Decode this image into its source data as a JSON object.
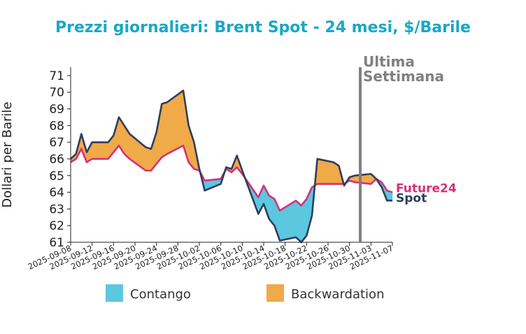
{
  "chart_data": {
    "type": "line",
    "title": "Prezzi giornalieri: Brent Spot - 24 mesi, $/Barile",
    "ylabel": "Dollari per Barile",
    "xlabel": "",
    "ylim": [
      61,
      71.5
    ],
    "yticks": [
      61,
      62,
      63,
      64,
      65,
      66,
      67,
      68,
      69,
      70,
      71
    ],
    "xlim": [
      "2025-09-08",
      "2025-11-07"
    ],
    "xticks": [
      "2025-09-08",
      "2025-09-12",
      "2025-09-16",
      "2025-09-20",
      "2025-09-24",
      "2025-09-28",
      "2025-10-02",
      "2025-10-06",
      "2025-10-10",
      "2025-10-14",
      "2025-10-18",
      "2025-10-22",
      "2025-10-26",
      "2025-10-30",
      "2025-11-03",
      "2025-11-07"
    ],
    "x": [
      "2025-09-08",
      "2025-09-09",
      "2025-09-10",
      "2025-09-11",
      "2025-09-12",
      "2025-09-15",
      "2025-09-16",
      "2025-09-17",
      "2025-09-18",
      "2025-09-19",
      "2025-09-22",
      "2025-09-23",
      "2025-09-24",
      "2025-09-25",
      "2025-09-26",
      "2025-09-29",
      "2025-09-30",
      "2025-10-01",
      "2025-10-02",
      "2025-10-03",
      "2025-10-06",
      "2025-10-07",
      "2025-10-08",
      "2025-10-09",
      "2025-10-10",
      "2025-10-13",
      "2025-10-14",
      "2025-10-15",
      "2025-10-16",
      "2025-10-17",
      "2025-10-20",
      "2025-10-21",
      "2025-10-22",
      "2025-10-23",
      "2025-10-24",
      "2025-10-27",
      "2025-10-28",
      "2025-10-29",
      "2025-10-30",
      "2025-10-31",
      "2025-11-03",
      "2025-11-04",
      "2025-11-05",
      "2025-11-06",
      "2025-11-07"
    ],
    "series": [
      {
        "name": "Spot",
        "color": "#2d3e5c",
        "values": [
          66.0,
          66.3,
          67.5,
          66.4,
          67.0,
          67.0,
          67.4,
          68.5,
          68.0,
          67.5,
          66.7,
          66.6,
          67.6,
          69.3,
          69.4,
          70.1,
          68.0,
          67.0,
          65.4,
          64.1,
          64.5,
          65.5,
          65.4,
          66.2,
          65.3,
          62.7,
          63.3,
          62.4,
          62.0,
          61.1,
          61.3,
          61.0,
          61.4,
          62.6,
          66.0,
          65.8,
          65.6,
          64.4,
          64.9,
          65.0,
          65.1,
          64.8,
          64.3,
          63.5,
          63.5
        ]
      },
      {
        "name": "Future24",
        "color": "#d6307a",
        "values": [
          65.8,
          66.0,
          66.6,
          65.8,
          66.0,
          66.0,
          66.4,
          66.8,
          66.3,
          66.0,
          65.3,
          65.3,
          65.7,
          66.1,
          66.3,
          66.8,
          65.8,
          65.4,
          65.3,
          64.7,
          64.8,
          65.4,
          65.2,
          65.5,
          65.1,
          63.7,
          64.4,
          63.8,
          63.6,
          62.9,
          63.5,
          63.2,
          63.6,
          64.3,
          64.5,
          64.5,
          64.5,
          64.5,
          64.7,
          64.6,
          64.5,
          64.8,
          64.6,
          64.1,
          64.0
        ]
      }
    ],
    "fill_colors": {
      "contango": "#5bc8e0",
      "backwardation": "#f0aa47"
    },
    "legend": {
      "position": "bottom",
      "entries": [
        "Contango",
        "Backwardation"
      ]
    },
    "annotation": {
      "x": "2025-11-01",
      "line1": "Ultima",
      "line2": "Settimana",
      "color": "#808080"
    },
    "grid": false
  }
}
